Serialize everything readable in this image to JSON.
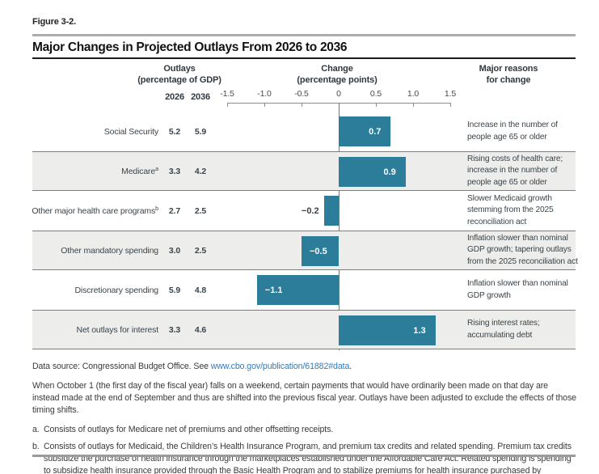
{
  "figure": {
    "label": "Figure 3-2.",
    "title": "Major Changes in Projected Outlays From 2026 to 2036"
  },
  "columns": {
    "outlays_line1": "Outlays",
    "outlays_line2": "(percentage of GDP)",
    "change_line1": "Change",
    "change_line2": "(percentage points)",
    "reasons_line1": "Major reasons",
    "reasons_line2": "for change"
  },
  "year_headers": {
    "y2026": "2026",
    "y2036": "2036"
  },
  "chart_data": {
    "type": "bar",
    "orientation": "horizontal",
    "title": "Major Changes in Projected Outlays From 2026 to 2036",
    "xlabel": "Change (percentage points)",
    "xlim": [
      -1.5,
      1.5
    ],
    "grid": false,
    "axis_ticks": [
      {
        "value": -1.5,
        "label": "-1.5"
      },
      {
        "value": -1.0,
        "label": "-1.0"
      },
      {
        "value": -0.5,
        "label": "-0.5"
      },
      {
        "value": 0,
        "label": "0"
      },
      {
        "value": 0.5,
        "label": "0.5"
      },
      {
        "value": 1.0,
        "label": "1.0"
      },
      {
        "value": 1.5,
        "label": "1.5"
      }
    ],
    "rows": [
      {
        "label": "Social Security",
        "sup": "",
        "y2026": "5.2",
        "y2036": "5.9",
        "change": 0.7,
        "change_label": "0.7",
        "shaded": false,
        "reason": "Increase in the number of people age 65 or older"
      },
      {
        "label": "Medicare",
        "sup": "a",
        "y2026": "3.3",
        "y2036": "4.2",
        "change": 0.9,
        "change_label": "0.9",
        "shaded": true,
        "reason": "Rising costs of health care; increase in the number of people age 65 or older"
      },
      {
        "label": "Other major health care programs",
        "sup": "b",
        "y2026": "2.7",
        "y2036": "2.5",
        "change": -0.2,
        "change_label": "−0.2",
        "shaded": false,
        "reason": "Slower Medicaid growth stemming from the 2025 reconciliation act"
      },
      {
        "label": "Other mandatory spending",
        "sup": "",
        "y2026": "3.0",
        "y2036": "2.5",
        "change": -0.5,
        "change_label": "−0.5",
        "shaded": true,
        "reason": "Inflation slower than nominal GDP growth; tapering outlays from the 2025 reconciliation act"
      },
      {
        "label": "Discretionary spending",
        "sup": "",
        "y2026": "5.9",
        "y2036": "4.8",
        "change": -1.1,
        "change_label": "−1.1",
        "shaded": false,
        "reason": "Inflation slower than nominal GDP growth"
      },
      {
        "label": "Net outlays for interest",
        "sup": "",
        "y2026": "3.3",
        "y2036": "4.6",
        "change": 1.3,
        "change_label": "1.3",
        "shaded": true,
        "reason": "Rising interest rates; accumulating debt"
      }
    ],
    "colors": {
      "bar": "#2b7d99",
      "band": "#edeeeb"
    }
  },
  "footer": {
    "data_source_prefix": "Data source: Congressional Budget Office. See ",
    "data_source_link": "www.cbo.gov/publication/61882#data",
    "data_source_suffix": ".",
    "note": "When October 1 (the first day of the fiscal year) falls on a weekend, certain payments that would have ordinarily been made on that day are instead made at the end of September and thus are shifted into the previous fiscal year. Outlays have been adjusted to exclude the effects of those timing shifts.",
    "footnotes": [
      {
        "marker": "a.",
        "text": "Consists of outlays for Medicare net of premiums and other offsetting receipts."
      },
      {
        "marker": "b.",
        "text": "Consists of outlays for Medicaid, the Children’s Health Insurance Program, and premium tax credits and related spending. Premium tax credits subsidize the purchase of health insurance through the marketplaces established under the Affordable Care Act. Related spending is spending to subsidize health insurance provided through the Basic Health Program and to stabilize premiums for health insurance purchased by individuals and small employers."
      }
    ]
  }
}
